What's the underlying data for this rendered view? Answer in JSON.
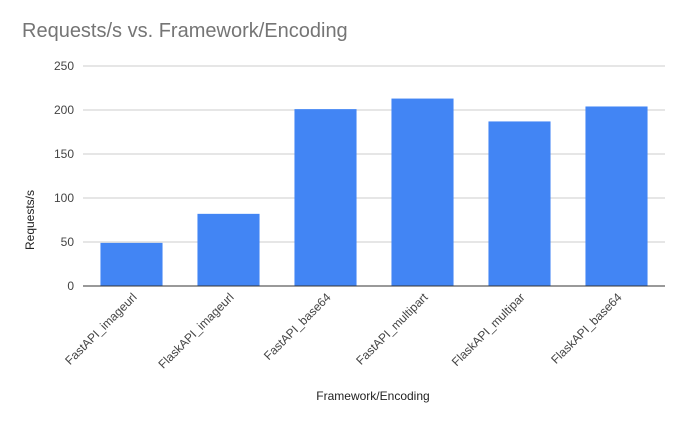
{
  "chart_data": {
    "type": "bar",
    "title": "Requests/s vs. Framework/Encoding",
    "xlabel": "Framework/Encoding",
    "ylabel": "Requests/s",
    "categories": [
      "FastAPI_imageurl",
      "FlaskAPI_imageurl",
      "FastAPI_base64",
      "FastAPI_multipart",
      "FlaskAPI_multipar",
      "FlaskAPI_base64"
    ],
    "values": [
      49,
      82,
      201,
      213,
      187,
      204
    ],
    "ylim": [
      0,
      250
    ],
    "yticks": [
      0,
      50,
      100,
      150,
      200,
      250
    ],
    "grid": true,
    "legend": "none",
    "colors": {
      "bar": "#4285f4",
      "grid": "#cccccc",
      "axis": "#333333",
      "text": "#444444",
      "title": "#757575"
    }
  }
}
